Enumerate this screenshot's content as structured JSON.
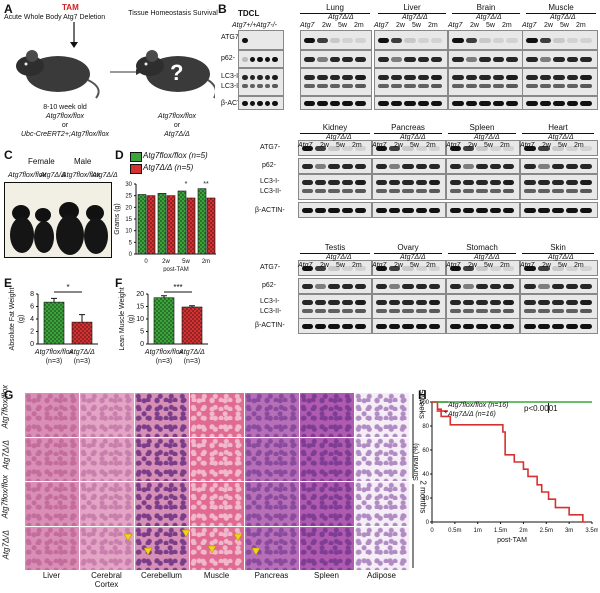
{
  "panel_labels": [
    "A",
    "B",
    "C",
    "D",
    "E",
    "F",
    "G",
    "H"
  ],
  "panelA": {
    "tam": "TAM",
    "title_left": "Acute Whole Body Atg7 Deletion",
    "title_right": "Tissue Homeostasis Survival",
    "age": "8-10 week old",
    "geno1": "Atg7flox/flox",
    "or1": "or",
    "geno2": "Ubc-CreERT2+;Atg7flox/flox",
    "right_geno1": "Atg7flox/flox",
    "right_or": "or",
    "right_geno2": "Atg7Δ/Δ",
    "question": "?"
  },
  "panelB": {
    "tdcl": "TDCL",
    "tdcl_cols": [
      "Atg7+/+",
      "Atg7-/-"
    ],
    "row_labels_top": [
      "ATG7-",
      "p62-",
      "LC3-I-",
      "LC3-II-",
      "β-ACTIN-"
    ],
    "tissues_row1": [
      "Lung",
      "Liver",
      "Brain",
      "Muscle"
    ],
    "tissues_row2": [
      "Kidney",
      "Pancreas",
      "Spleen",
      "Heart"
    ],
    "tissues_row3": [
      "Testis",
      "Ovary",
      "Stomach",
      "Skin"
    ],
    "geno_ctrl": "Atg7flox/flox",
    "geno_ko": "Atg7Δ/Δ",
    "timepoints": [
      "2w",
      "5w",
      "2m"
    ]
  },
  "panelC": {
    "female": "Female",
    "male": "Male",
    "geno_ctrl": "Atg7flox/flox",
    "geno_ko": "Atg7Δ/Δ"
  },
  "panelD": {
    "legend": [
      "Atg7flox/flox (n=5)",
      "Atg7Δ/Δ (n=5)"
    ],
    "ylabel": "Grams (g)",
    "xlabel": "post-TAM",
    "xticks": [
      "0",
      "2w",
      "5w",
      "2m"
    ],
    "yticks": [
      "0",
      "5",
      "10",
      "15",
      "20",
      "25",
      "30"
    ],
    "sig": [
      "*",
      "**"
    ]
  },
  "panelE": {
    "ylabel": "Absolute Fat Weight (g)",
    "yticks": [
      "0",
      "2",
      "4",
      "6",
      "8"
    ],
    "cats": [
      "Atg7flox/flox (n=3)",
      "Atg7Δ/Δ (n=3)"
    ],
    "sig": "*"
  },
  "panelF": {
    "ylabel": "Lean Muscle Weight (g)",
    "yticks": [
      "0",
      "5",
      "10",
      "15",
      "20"
    ],
    "cats": [
      "Atg7flox/flox (n=3)",
      "Atg7Δ/Δ (n=3)"
    ],
    "sig": "***"
  },
  "panelG": {
    "rows": [
      "Atg7flox/flox",
      "Atg7Δ/Δ",
      "Atg7flox/flox",
      "Atg7Δ/Δ"
    ],
    "cols": [
      "Liver",
      "Cerebral Cortex",
      "Cerebellum",
      "Muscle",
      "Pancreas",
      "Spleen",
      "Adipose"
    ],
    "time1": "5 weeks",
    "time2": "2 months"
  },
  "panelH": {
    "legend": [
      "Atg7flox/flox (n=16)",
      "Atg7Δ/Δ (n=16)"
    ],
    "pval": "p<0.0001",
    "ylabel": "Survival (%)",
    "xlabel": "post-TAM",
    "yticks": [
      "0",
      "20",
      "40",
      "60",
      "80",
      "100"
    ],
    "xticks": [
      "0",
      "0.5m",
      "1m",
      "1.5m",
      "2m",
      "2.5m",
      "3m",
      "3.5m"
    ],
    "sig": "*"
  },
  "chart_data": [
    {
      "type": "bar",
      "panel": "D",
      "categories": [
        "0",
        "2w",
        "5w",
        "2m"
      ],
      "series": [
        {
          "name": "Atg7flox/flox (n=5)",
          "values": [
            25.5,
            26,
            27,
            28
          ]
        },
        {
          "name": "Atg7Δ/Δ (n=5)",
          "values": [
            25,
            25,
            24,
            24
          ]
        }
      ],
      "ylabel": "Grams (g)",
      "xlabel": "post-TAM",
      "ylim": [
        0,
        30
      ],
      "colors": [
        "#3aa63a",
        "#d63030"
      ]
    },
    {
      "type": "bar",
      "panel": "E",
      "categories": [
        "Atg7flox/flox (n=3)",
        "Atg7Δ/Δ (n=3)"
      ],
      "values": [
        6.7,
        3.5
      ],
      "errors": [
        0.6,
        1.2
      ],
      "ylabel": "Absolute Fat Weight (g)",
      "ylim": [
        0,
        8
      ],
      "colors": [
        "#3aa63a",
        "#d63030"
      ]
    },
    {
      "type": "bar",
      "panel": "F",
      "categories": [
        "Atg7flox/flox (n=3)",
        "Atg7Δ/Δ (n=3)"
      ],
      "values": [
        18.5,
        14.8
      ],
      "errors": [
        0.8,
        0.5
      ],
      "ylabel": "Lean Muscle Weight (g)",
      "ylim": [
        0,
        20
      ],
      "colors": [
        "#3aa63a",
        "#d63030"
      ]
    },
    {
      "type": "line",
      "panel": "H",
      "series": [
        {
          "name": "Atg7flox/flox (n=16)",
          "x": [
            0,
            3.5
          ],
          "y": [
            100,
            100
          ],
          "color": "#3aa63a"
        },
        {
          "name": "Atg7Δ/Δ (n=16)",
          "x": [
            0,
            0.12,
            0.2,
            0.4,
            1.3,
            1.55,
            1.6,
            1.8,
            2.0,
            2.1,
            2.3,
            2.4,
            2.55,
            2.7,
            3.0,
            3.3
          ],
          "y": [
            100,
            94,
            88,
            81,
            81,
            75,
            56,
            50,
            44,
            38,
            31,
            25,
            19,
            12,
            6,
            0
          ],
          "color": "#d63030"
        }
      ],
      "ylabel": "Survival (%)",
      "xlabel": "post-TAM",
      "ylim": [
        0,
        100
      ],
      "xlim": [
        0,
        3.5
      ]
    }
  ]
}
